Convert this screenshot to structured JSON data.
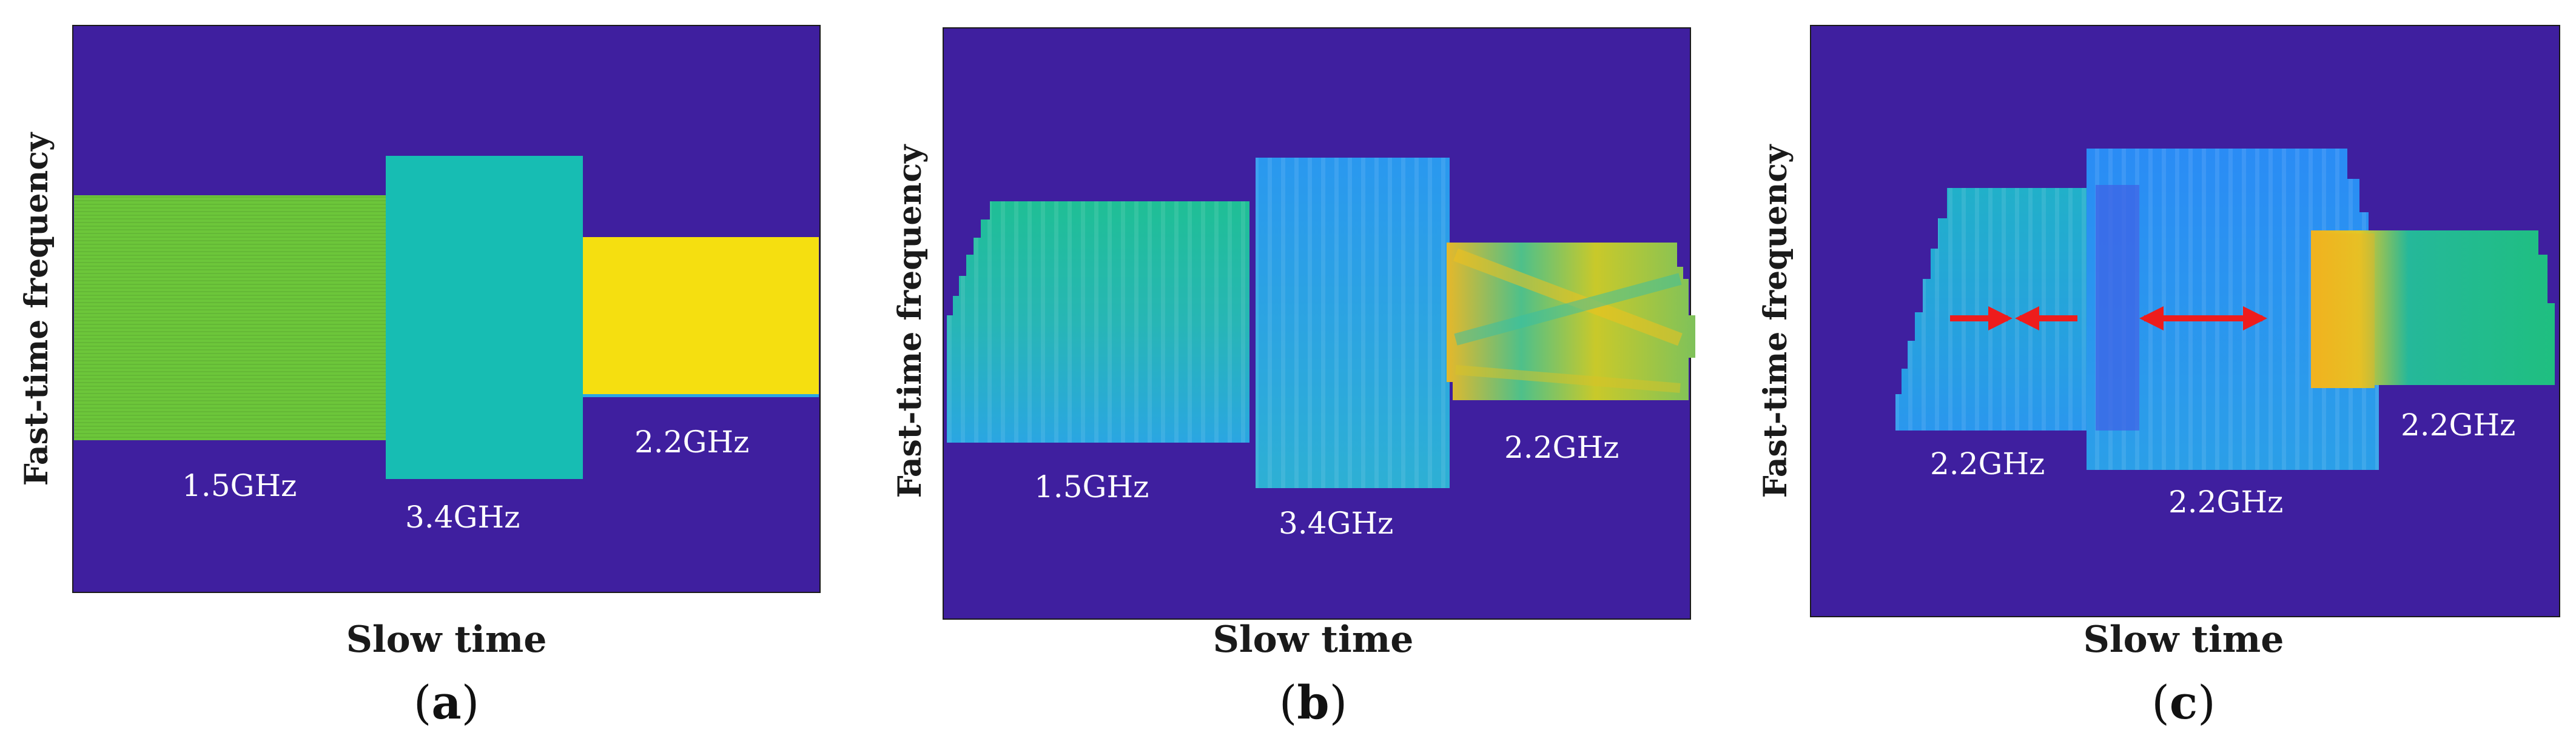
{
  "figure": {
    "panels": [
      {
        "caption_left": "(",
        "caption_letter": "a",
        "caption_right": ")",
        "x_label": "Slow time",
        "y_label": "Fast-time frequency",
        "bands": [
          {
            "label": "1.5GHz"
          },
          {
            "label": "3.4GHz"
          },
          {
            "label": "2.2GHz"
          }
        ]
      },
      {
        "caption_left": "(",
        "caption_letter": "b",
        "caption_right": ")",
        "x_label": "Slow time",
        "y_label": "Fast-time frequency",
        "bands": [
          {
            "label": "1.5GHz"
          },
          {
            "label": "3.4GHz"
          },
          {
            "label": "2.2GHz"
          }
        ]
      },
      {
        "caption_left": "(",
        "caption_letter": "c",
        "caption_right": ")",
        "x_label": "Slow time",
        "y_label": "Fast-time frequency",
        "bands": [
          {
            "label": "2.2GHz"
          },
          {
            "label": "2.2GHz"
          },
          {
            "label": "2.2GHz"
          }
        ]
      }
    ],
    "colors": {
      "background": "#3f1f9f",
      "green": "#6cc63a",
      "teal": "#17bdb3",
      "yellow": "#f5df10",
      "blue": "#2a98f0",
      "arrow": "#ee1c1c"
    }
  }
}
